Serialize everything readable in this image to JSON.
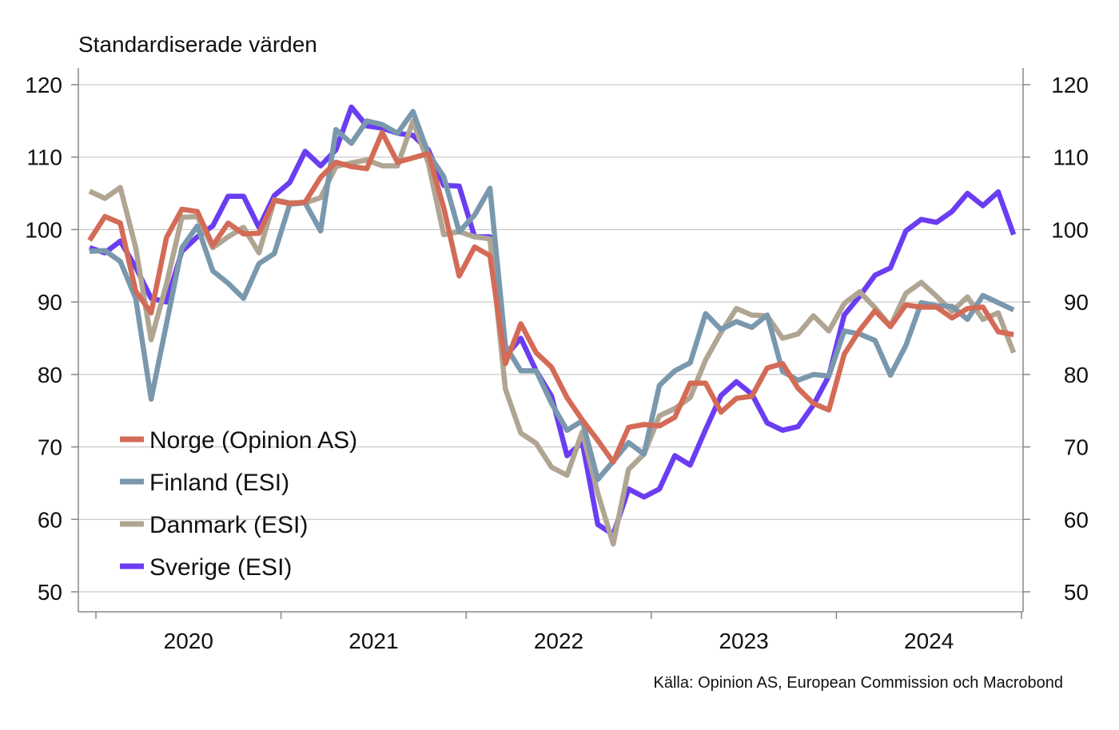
{
  "chart_data": {
    "type": "line",
    "title": "Standardiserade värden",
    "source": "Källa: Opinion AS, European Commission och Macrobond",
    "ylim": [
      50,
      120
    ],
    "y_ticks": [
      "50",
      "60",
      "70",
      "80",
      "90",
      "100",
      "110",
      "120"
    ],
    "x_ticks": [
      "2020",
      "2021",
      "2022",
      "2023",
      "2024"
    ],
    "x_start": "2020-01",
    "x_end": "2025-01",
    "grid": true,
    "legend_position": "lower-left",
    "series": [
      {
        "name": "Norge (Opinion AS)",
        "color": "#d36b57",
        "values": [
          98.5,
          101.8,
          100.9,
          91.5,
          88.5,
          98.9,
          102.8,
          102.5,
          97.8,
          100.9,
          99.4,
          99.5,
          104.0,
          103.6,
          103.8,
          107.2,
          109.3,
          108.7,
          108.4,
          113.4,
          109.3,
          109.9,
          110.5,
          103.0,
          93.6,
          97.6,
          96.4,
          81.5,
          87.0,
          83.0,
          81.0,
          76.8,
          73.7,
          70.9,
          67.9,
          72.7,
          73.1,
          72.9,
          74.1,
          78.8,
          78.8,
          74.8,
          76.7,
          77.0,
          80.9,
          81.5,
          78.1,
          76.0,
          75.1,
          82.8,
          86.1,
          88.8,
          86.6,
          89.6,
          89.3,
          89.3,
          87.8,
          89.1,
          89.3,
          85.9,
          85.5
        ]
      },
      {
        "name": "Finland (ESI)",
        "color": "#7a98ad",
        "values": [
          97.0,
          97.1,
          95.6,
          90.5,
          76.6,
          87.0,
          97.5,
          100.5,
          94.3,
          92.6,
          90.5,
          95.3,
          96.7,
          103.5,
          103.7,
          99.8,
          113.8,
          111.9,
          115.0,
          114.5,
          113.3,
          116.3,
          110.5,
          107.3,
          99.7,
          102.0,
          105.7,
          84.0,
          80.5,
          80.5,
          76.0,
          72.3,
          73.6,
          65.5,
          68.0,
          70.6,
          69.0,
          78.5,
          80.5,
          81.6,
          88.4,
          86.2,
          87.3,
          86.5,
          88.2,
          80.4,
          79.2,
          80.0,
          79.8,
          86.0,
          85.6,
          84.7,
          79.9,
          84.0,
          89.9,
          89.5,
          89.4,
          87.6,
          90.9,
          89.9,
          88.9
        ]
      },
      {
        "name": "Danmark (ESI)",
        "color": "#b0a593",
        "values": [
          105.3,
          104.3,
          105.8,
          97.5,
          84.8,
          92.5,
          101.7,
          101.8,
          97.5,
          99.0,
          100.3,
          96.8,
          104.1,
          103.7,
          103.7,
          104.4,
          108.7,
          109.2,
          109.6,
          108.8,
          108.8,
          115.0,
          109.2,
          99.3,
          99.7,
          99.0,
          98.7,
          78.0,
          71.9,
          70.5,
          67.2,
          66.1,
          72.1,
          63.6,
          56.6,
          66.9,
          69.0,
          74.3,
          75.3,
          76.8,
          82.0,
          85.8,
          89.1,
          88.2,
          88.1,
          85.0,
          85.6,
          88.1,
          86.0,
          89.8,
          91.4,
          89.2,
          86.7,
          91.2,
          92.7,
          90.8,
          88.7,
          90.7,
          87.6,
          88.5,
          83.0
        ]
      },
      {
        "name": "Sverige (ESI)",
        "color": "#6b3df2",
        "values": [
          97.5,
          96.8,
          98.4,
          94.8,
          90.5,
          90.0,
          97.0,
          99.0,
          100.5,
          104.6,
          104.6,
          100.3,
          104.7,
          106.5,
          110.8,
          108.8,
          111.0,
          116.9,
          114.3,
          114.0,
          113.3,
          113.0,
          111.0,
          106.1,
          106.0,
          99.0,
          99.0,
          82.5,
          85.0,
          80.5,
          77.0,
          68.8,
          70.6,
          59.3,
          57.9,
          64.2,
          63.1,
          64.2,
          68.8,
          67.5,
          72.4,
          77.1,
          79.0,
          77.3,
          73.3,
          72.3,
          72.8,
          75.8,
          79.8,
          88.2,
          90.8,
          93.7,
          94.7,
          99.8,
          101.4,
          101.0,
          102.5,
          105.0,
          103.3,
          105.2,
          99.3
        ]
      }
    ]
  }
}
